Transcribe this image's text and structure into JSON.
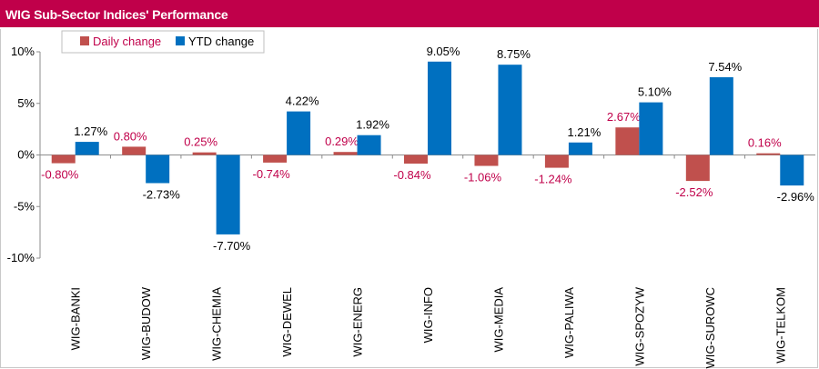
{
  "title": "WIG Sub-Sector Indices' Performance",
  "colors": {
    "title_bg": "#c0004a",
    "daily": "#c0504d",
    "ytd": "#0070c0",
    "daily_label": "#c0004a",
    "ytd_label": "#000000"
  },
  "chart_data": {
    "type": "bar",
    "categories": [
      "WIG-BANKI",
      "WIG-BUDOW",
      "WIG-CHEMIA",
      "WIG-DEWEL",
      "WIG-ENERG",
      "WIG-INFO",
      "WIG-MEDIA",
      "WIG-PALIWA",
      "WIG-SPOZYW",
      "WIG-SUROWC",
      "WIG-TELKOM"
    ],
    "series": [
      {
        "name": "Daily change",
        "values": [
          -0.8,
          0.8,
          0.25,
          -0.74,
          0.29,
          -0.84,
          -1.06,
          -1.24,
          2.67,
          -2.52,
          0.16
        ],
        "labels": [
          "-0.80%",
          "0.80%",
          "0.25%",
          "-0.74%",
          "0.29%",
          "-0.84%",
          "-1.06%",
          "-1.24%",
          "2.67%",
          "-2.52%",
          "0.16%"
        ]
      },
      {
        "name": "YTD change",
        "values": [
          1.27,
          -2.73,
          -7.7,
          4.22,
          1.92,
          9.05,
          8.75,
          1.21,
          5.1,
          7.54,
          -2.96
        ],
        "labels": [
          "1.27%",
          "-2.73%",
          "-7.70%",
          "4.22%",
          "1.92%",
          "9.05%",
          "8.75%",
          "1.21%",
          "5.10%",
          "7.54%",
          "-2.96%"
        ]
      }
    ],
    "y_ticks": [
      10,
      5,
      0,
      -5,
      -10
    ],
    "y_tick_labels": [
      "10%",
      "5%",
      "0%",
      "-5%",
      "-10%"
    ],
    "ylim": [
      -10,
      10
    ],
    "grid": false,
    "legend": "top-left"
  }
}
